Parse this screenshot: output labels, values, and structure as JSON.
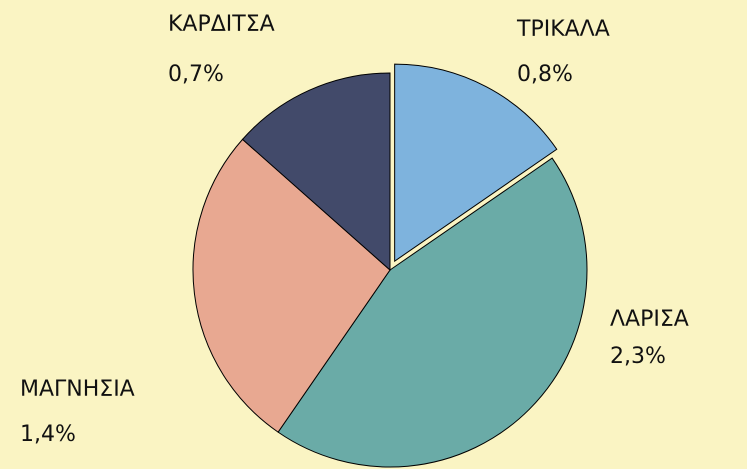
{
  "chart_data": {
    "type": "pie",
    "categories": [
      "ΤΡΙΚΑΛΑ",
      "ΛΑΡΙΣΑ",
      "ΜΑΓΝΗΣΙΑ",
      "ΚΑΡΔΙΤΣΑ"
    ],
    "values": [
      0.8,
      2.3,
      1.4,
      0.7
    ],
    "value_labels": [
      "0,8%",
      "2,3%",
      "1,4%",
      "0,7%"
    ],
    "colors": [
      "#7eb3dd",
      "#6aaba7",
      "#e8a891",
      "#424a6a"
    ]
  }
}
